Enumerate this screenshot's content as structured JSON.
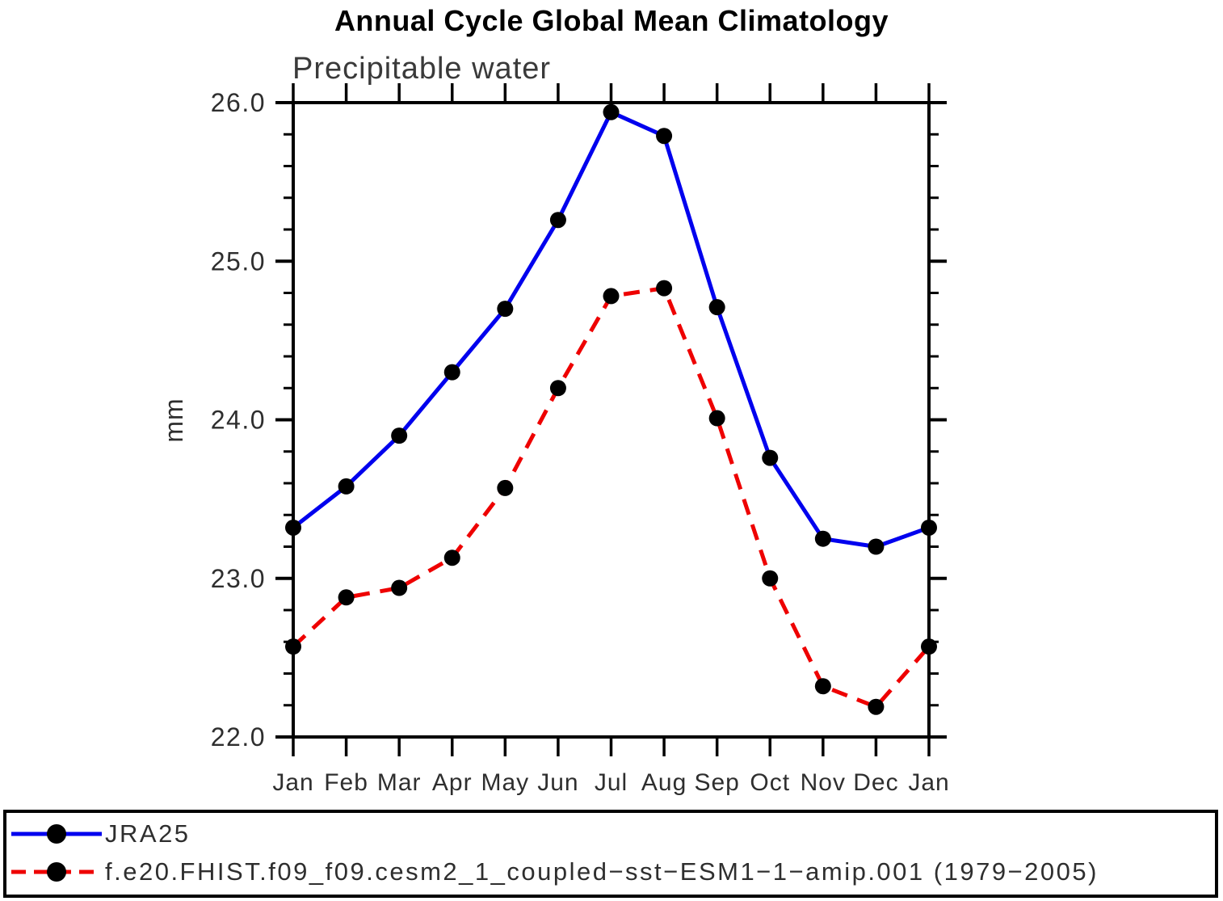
{
  "title": "Annual Cycle Global Mean Climatology",
  "subtitle": "Precipitable water",
  "chart_data": {
    "type": "line",
    "title": "Annual Cycle Global Mean Climatology",
    "subtitle": "Precipitable water",
    "ylabel": "mm",
    "xlabel": "",
    "categories": [
      "Jan",
      "Feb",
      "Mar",
      "Apr",
      "May",
      "Jun",
      "Jul",
      "Aug",
      "Sep",
      "Oct",
      "Nov",
      "Dec",
      "Jan"
    ],
    "series": [
      {
        "name": "JRA25",
        "color": "#0000ee",
        "line_style": "solid",
        "marker": "black-dot",
        "values": [
          23.32,
          23.58,
          23.9,
          24.3,
          24.7,
          25.26,
          25.94,
          25.79,
          24.71,
          23.76,
          23.25,
          23.2,
          23.32
        ]
      },
      {
        "name": "f.e20.FHIST.f09_f09.cesm2_1_coupled−sst−ESM1−1−amip.001 (1979−2005)",
        "color": "#ee0000",
        "line_style": "dashed",
        "marker": "black-dot",
        "values": [
          22.57,
          22.88,
          22.94,
          23.13,
          23.57,
          24.2,
          24.78,
          24.83,
          24.01,
          23.0,
          22.32,
          22.19,
          22.57
        ]
      }
    ],
    "ylim": [
      22.0,
      26.0
    ],
    "yticks": [
      22.0,
      23.0,
      24.0,
      25.0,
      26.0
    ],
    "ytick_labels": [
      "22.0",
      "23.0",
      "24.0",
      "25.0",
      "26.0"
    ],
    "minor_tick_interval": 0.2,
    "grid": false,
    "legend_position": "bottom",
    "axis_color": "#000000",
    "marker_color": "#000000",
    "text_color": "#2e2e2e"
  }
}
